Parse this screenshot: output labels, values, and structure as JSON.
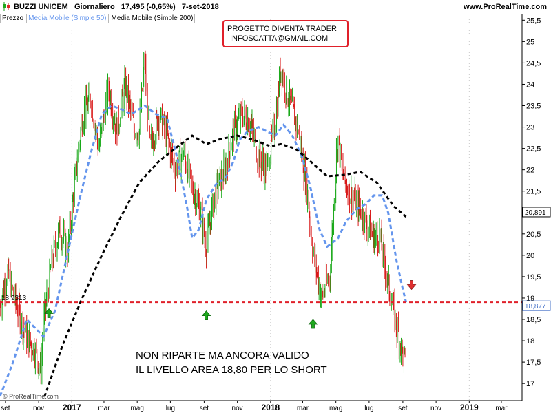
{
  "header": {
    "title": "BUZZI UNICEM   Giornaliero   17,495 (-0,65%)   7-set-2018",
    "site": "www.ProRealTime.com"
  },
  "legend": [
    "Prezzo",
    "Media Mobile (Simple 50)",
    "Media Mobile (Simple 200)"
  ],
  "note": {
    "line1": "PROGETTO DIVENTA TRADER",
    "line2": "INFOSCATTA@GMAIL.COM"
  },
  "annotation": {
    "line1": "NON RIPARTE MA ANCORA VALIDO",
    "line2": "IL LIVELLO AREA 18,80 PER LO SHORT"
  },
  "watermark": "© ProRealTime.com",
  "colors": {
    "up": "#18a818",
    "down": "#d81818",
    "ma50": "#6495ed",
    "ma200": "#000000",
    "level": "#e0202a",
    "up_arrow": "#1ea81e",
    "down_arrow": "#e03030",
    "box_blue": "#4a74c9"
  },
  "chart_data": {
    "type": "line",
    "ylim": [
      16.6,
      25.65
    ],
    "xlim": [
      "2016-08-22",
      "2019-04-08"
    ],
    "x_tick_labels": [
      "set",
      "nov",
      "2017",
      "mar",
      "mag",
      "lug",
      "set",
      "nov",
      "2018",
      "mar",
      "mag",
      "lug",
      "set",
      "nov",
      "2019",
      "mar"
    ],
    "y_tick_labels": [
      "17",
      "17,5",
      "18",
      "18,5",
      "19",
      "19,5",
      "20",
      "20,5",
      "21",
      "21,5",
      "22",
      "22,5",
      "23",
      "23,5",
      "24",
      "24,5",
      "25",
      "25,5"
    ],
    "series": [
      {
        "name": "Prezzo",
        "x": [
          "2016-08-22",
          "2016-09-05",
          "2016-09-20",
          "2016-10-10",
          "2016-10-25",
          "2016-11-05",
          "2016-11-12",
          "2016-11-25",
          "2016-12-10",
          "2016-12-25",
          "2017-01-05",
          "2017-01-20",
          "2017-02-05",
          "2017-02-20",
          "2017-03-10",
          "2017-03-25",
          "2017-04-10",
          "2017-04-25",
          "2017-05-05",
          "2017-05-15",
          "2017-05-25",
          "2017-06-10",
          "2017-06-25",
          "2017-07-10",
          "2017-07-25",
          "2017-08-10",
          "2017-08-25",
          "2017-09-05",
          "2017-09-15",
          "2017-09-25",
          "2017-10-10",
          "2017-10-25",
          "2017-11-10",
          "2017-11-25",
          "2017-12-10",
          "2017-12-25",
          "2018-01-10",
          "2018-01-20",
          "2018-02-05",
          "2018-02-20",
          "2018-03-10",
          "2018-03-20",
          "2018-04-05",
          "2018-04-20",
          "2018-05-05",
          "2018-05-15",
          "2018-05-25",
          "2018-06-10",
          "2018-06-25",
          "2018-07-10",
          "2018-07-20",
          "2018-08-01",
          "2018-08-10",
          "2018-08-20",
          "2018-09-01",
          "2018-09-07"
        ],
        "values": [
          18.8,
          19.6,
          18.9,
          18.1,
          17.8,
          17.3,
          18.6,
          19.8,
          20.6,
          20.1,
          21.5,
          23.2,
          23.7,
          22.5,
          23.9,
          22.9,
          24.0,
          23.0,
          22.9,
          24.6,
          22.5,
          23.3,
          22.8,
          22.0,
          22.4,
          21.6,
          21.1,
          20.2,
          21.0,
          21.6,
          22.0,
          22.9,
          23.3,
          23.1,
          22.3,
          22.0,
          23.1,
          24.4,
          23.6,
          23.0,
          21.5,
          20.1,
          19.0,
          19.5,
          22.8,
          21.8,
          21.5,
          21.2,
          20.8,
          20.4,
          20.5,
          19.6,
          19.0,
          18.4,
          17.7,
          17.5
        ]
      },
      {
        "name": "Media Mobile (Simple 50)",
        "x": [
          "2016-08-22",
          "2016-09-15",
          "2016-10-10",
          "2016-11-10",
          "2016-12-01",
          "2016-12-20",
          "2017-01-15",
          "2017-02-05",
          "2017-02-25",
          "2017-03-15",
          "2017-04-05",
          "2017-04-20",
          "2017-05-15",
          "2017-06-05",
          "2017-06-25",
          "2017-07-15",
          "2017-08-01",
          "2017-08-10",
          "2017-08-22",
          "2017-09-05",
          "2017-09-15",
          "2017-09-25",
          "2017-10-10",
          "2017-10-25",
          "2017-11-05",
          "2017-11-20",
          "2017-12-10",
          "2017-12-25",
          "2018-01-10",
          "2018-01-25",
          "2018-02-10",
          "2018-02-28",
          "2018-03-15",
          "2018-04-01",
          "2018-04-15",
          "2018-05-05",
          "2018-05-20",
          "2018-06-10",
          "2018-06-25",
          "2018-07-10",
          "2018-07-25",
          "2018-08-05",
          "2018-08-20",
          "2018-09-01",
          "2018-09-07"
        ],
        "values": [
          16.7,
          17.5,
          18.5,
          18.1,
          18.7,
          19.8,
          21.3,
          22.4,
          23.3,
          23.5,
          23.4,
          23.3,
          23.5,
          23.3,
          23.2,
          22.2,
          21.1,
          20.4,
          20.6,
          21.3,
          21.5,
          21.7,
          21.8,
          22.2,
          22.7,
          22.9,
          23.0,
          22.9,
          22.8,
          23.05,
          22.8,
          22.3,
          21.6,
          20.6,
          20.2,
          20.4,
          20.8,
          21.1,
          21.2,
          21.4,
          21.4,
          21.0,
          19.9,
          19.2,
          18.9
        ]
      },
      {
        "name": "Media Mobile (Simple 200)",
        "x": [
          "2016-11-12",
          "2016-12-15",
          "2017-01-20",
          "2017-02-25",
          "2017-04-01",
          "2017-05-05",
          "2017-06-10",
          "2017-07-10",
          "2017-08-10",
          "2017-09-05",
          "2017-10-01",
          "2017-11-01",
          "2017-12-01",
          "2018-01-01",
          "2018-01-20",
          "2018-02-15",
          "2018-03-15",
          "2018-04-15",
          "2018-05-15",
          "2018-06-15",
          "2018-07-15",
          "2018-08-15",
          "2018-09-07"
        ],
        "values": [
          16.7,
          17.9,
          19.0,
          20.0,
          20.9,
          21.7,
          22.2,
          22.5,
          22.8,
          22.6,
          22.72,
          22.8,
          22.7,
          22.55,
          22.6,
          22.5,
          22.2,
          21.85,
          21.88,
          21.95,
          21.7,
          21.15,
          20.9
        ]
      }
    ],
    "last_price_label": "20,891",
    "level_label": "18,877",
    "level_left_label": "18,9313",
    "level_value": 18.9
  }
}
